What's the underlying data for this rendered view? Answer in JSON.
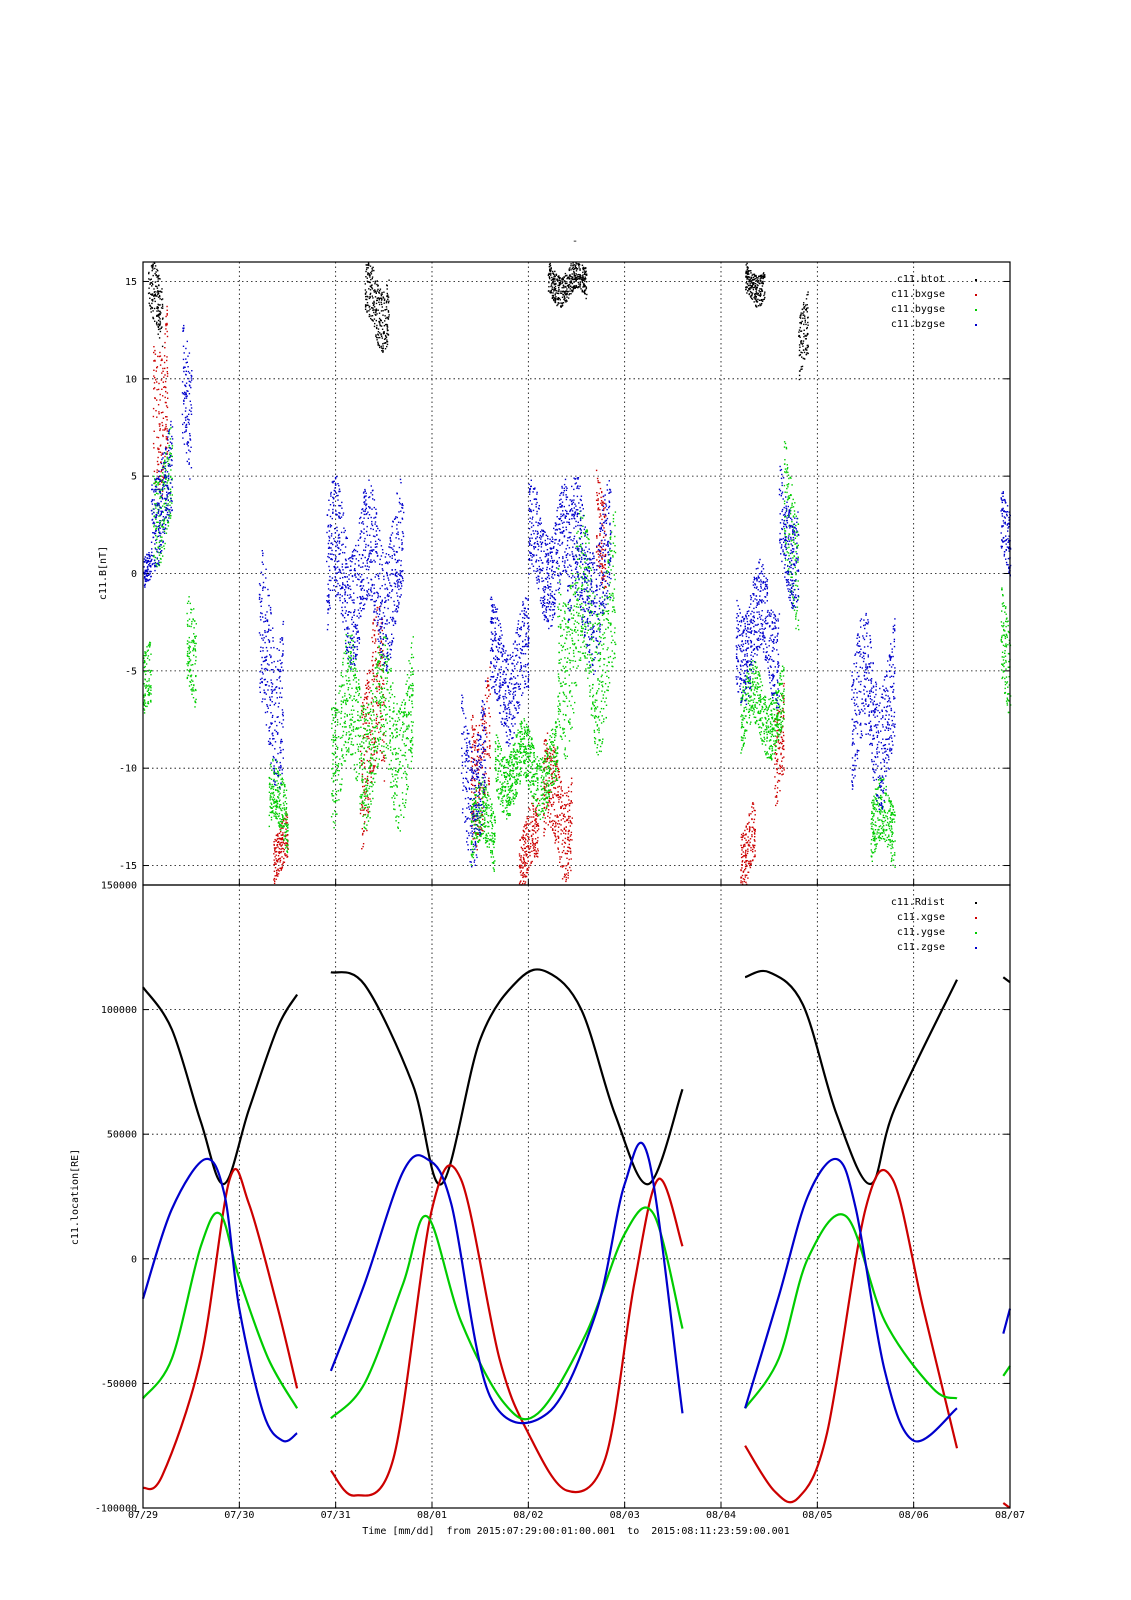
{
  "top_marker": "-",
  "xlabel": "Time [mm/dd]  from 2015:07:29:00:01:00.001  to  2015:08:11:23:59:00.001",
  "x_ticks": [
    "07/29",
    "07/30",
    "07/31",
    "08/01",
    "08/02",
    "08/03",
    "08/04",
    "08/05",
    "08/06",
    "08/07"
  ],
  "colors": {
    "black": "#000000",
    "red": "#cc0000",
    "green": "#00cc00",
    "blue": "#0000cc"
  },
  "chart_data": [
    {
      "type": "scatter",
      "ylabel": "c11.B[nT]",
      "x_unit": "days since 07/29",
      "xlim": [
        0,
        9
      ],
      "ylim": [
        -16,
        16
      ],
      "y_ticks": [
        15,
        10,
        5,
        0,
        -5,
        -10,
        -15
      ],
      "grid": true,
      "legend": "top-right",
      "series": [
        {
          "name": "c11.btot",
          "color": "black",
          "segments": [
            [
              0.05,
              0.2,
              14,
              2
            ],
            [
              2.3,
              2.55,
              14,
              2
            ],
            [
              4.2,
              4.6,
              15,
              1
            ],
            [
              6.25,
              6.45,
              15,
              1
            ],
            [
              6.8,
              6.9,
              12,
              2
            ]
          ]
        },
        {
          "name": "c11.bxgse",
          "color": "red",
          "segments": [
            [
              0.1,
              0.25,
              10,
              5
            ],
            [
              1.35,
              1.5,
              -14,
              1.5
            ],
            [
              2.25,
              2.5,
              -8,
              5
            ],
            [
              3.4,
              3.6,
              -9,
              4
            ],
            [
              3.9,
              4.1,
              -14,
              2
            ],
            [
              4.15,
              4.45,
              -12,
              3
            ],
            [
              4.7,
              4.8,
              3,
              3
            ],
            [
              6.2,
              6.35,
              -14,
              2
            ],
            [
              6.55,
              6.65,
              -8,
              3
            ]
          ]
        },
        {
          "name": "c11.bygse",
          "color": "green",
          "segments": [
            [
              0,
              0.08,
              -6,
              2
            ],
            [
              0.1,
              0.3,
              4,
              3
            ],
            [
              0.45,
              0.55,
              -5,
              3
            ],
            [
              1.3,
              1.5,
              -12,
              2
            ],
            [
              1.95,
              2.8,
              -8,
              4
            ],
            [
              3.4,
              3.65,
              -13,
              2
            ],
            [
              3.65,
              4.3,
              -10,
              2
            ],
            [
              4.3,
              4.9,
              -3,
              5
            ],
            [
              6.2,
              6.65,
              -7,
              2
            ],
            [
              6.65,
              6.8,
              2,
              4
            ],
            [
              7.55,
              7.8,
              -13,
              2
            ],
            [
              8.9,
              9,
              -4,
              3
            ]
          ]
        },
        {
          "name": "c11.bzgse",
          "color": "blue",
          "segments": [
            [
              0,
              0.08,
              0,
              1
            ],
            [
              0.08,
              0.3,
              4,
              3
            ],
            [
              0.4,
              0.5,
              8,
              4
            ],
            [
              1.2,
              1.45,
              -5,
              5
            ],
            [
              1.9,
              2.7,
              0,
              4
            ],
            [
              3.3,
              3.55,
              -10,
              4
            ],
            [
              3.6,
              4,
              -5,
              3
            ],
            [
              4,
              4.4,
              1,
              3
            ],
            [
              4.4,
              4.85,
              0,
              4
            ],
            [
              6.15,
              6.6,
              -3,
              3
            ],
            [
              6.6,
              6.8,
              2,
              3
            ],
            [
              7.35,
              7.8,
              -7,
              4
            ],
            [
              8.9,
              9,
              2,
              2
            ]
          ]
        }
      ]
    },
    {
      "type": "line",
      "ylabel": "c11.location[RE]",
      "x_unit": "days since 07/29",
      "xlim": [
        0,
        9
      ],
      "ylim": [
        -100000,
        150000
      ],
      "y_ticks": [
        150000,
        100000,
        50000,
        0,
        -50000,
        -100000
      ],
      "grid": true,
      "legend": "top-right",
      "gaps": [
        [
          1.6,
          1.95
        ],
        [
          5.6,
          6.25
        ],
        [
          8.45,
          8.93
        ]
      ],
      "series": [
        {
          "name": "c11.Rdist",
          "color": "black",
          "x": [
            0,
            0.3,
            0.6,
            0.84,
            1.1,
            1.4,
            1.6,
            1.95,
            2.3,
            2.8,
            3.1,
            3.5,
            3.9,
            4.2,
            4.55,
            4.9,
            5.25,
            5.6,
            6.25,
            6.5,
            6.85,
            7.2,
            7.55,
            7.8,
            8.45,
            8.93,
            9
          ],
          "y": [
            109000,
            92000,
            55000,
            30000,
            60000,
            93000,
            106000,
            115000,
            110000,
            70000,
            30000,
            88000,
            112000,
            115000,
            100000,
            58000,
            30000,
            68000,
            113000,
            115000,
            102000,
            58000,
            30000,
            60000,
            112000,
            113000,
            111000
          ]
        },
        {
          "name": "c11.xgse",
          "color": "red",
          "x": [
            0,
            0.2,
            0.6,
            0.9,
            1.1,
            1.4,
            1.6,
            1.95,
            2.2,
            2.6,
            3,
            3.3,
            3.7,
            4,
            4.4,
            4.8,
            5.1,
            5.35,
            5.6,
            6.25,
            6.55,
            6.8,
            7.1,
            7.5,
            7.78,
            8.1,
            8.45,
            8.93,
            9
          ],
          "y": [
            -92000,
            -87000,
            -40000,
            32000,
            22000,
            -20000,
            -52000,
            -85000,
            -95000,
            -80000,
            20000,
            32000,
            -40000,
            -70000,
            -93000,
            -80000,
            -10000,
            32000,
            5000,
            -75000,
            -93000,
            -96000,
            -70000,
            20000,
            32000,
            -20000,
            -76000,
            -98000,
            -100000
          ]
        },
        {
          "name": "c11.ygse",
          "color": "green",
          "x": [
            0,
            0.3,
            0.6,
            0.8,
            1.0,
            1.3,
            1.6,
            1.95,
            2.3,
            2.7,
            2.95,
            3.3,
            3.75,
            4.1,
            4.6,
            5.0,
            5.3,
            5.6,
            6.25,
            6.6,
            6.9,
            7.3,
            7.7,
            8.2,
            8.45,
            8.93,
            9
          ],
          "y": [
            -56000,
            -40000,
            5000,
            18000,
            -8000,
            -40000,
            -60000,
            -64000,
            -50000,
            -10000,
            17000,
            -25000,
            -58000,
            -62000,
            -30000,
            10000,
            18000,
            -28000,
            -60000,
            -40000,
            0,
            17000,
            -25000,
            -52000,
            -56000,
            -47000,
            -43000
          ]
        },
        {
          "name": "c11.zgse",
          "color": "blue",
          "x": [
            0,
            0.3,
            0.65,
            0.85,
            1.0,
            1.25,
            1.45,
            1.6,
            1.95,
            2.3,
            2.7,
            2.95,
            3.2,
            3.6,
            4.2,
            4.7,
            5.0,
            5.25,
            5.6,
            6.25,
            6.6,
            6.9,
            7.2,
            7.4,
            7.7,
            8.0,
            8.45,
            8.93,
            9
          ],
          "y": [
            -16000,
            20000,
            40000,
            25000,
            -20000,
            -62000,
            -73000,
            -70000,
            -45000,
            -10000,
            35000,
            40000,
            22000,
            -55000,
            -62000,
            -22000,
            30000,
            40000,
            -62000,
            -60000,
            -15000,
            25000,
            40000,
            20000,
            -45000,
            -73000,
            -60000,
            -30000,
            -20000
          ]
        }
      ]
    }
  ]
}
